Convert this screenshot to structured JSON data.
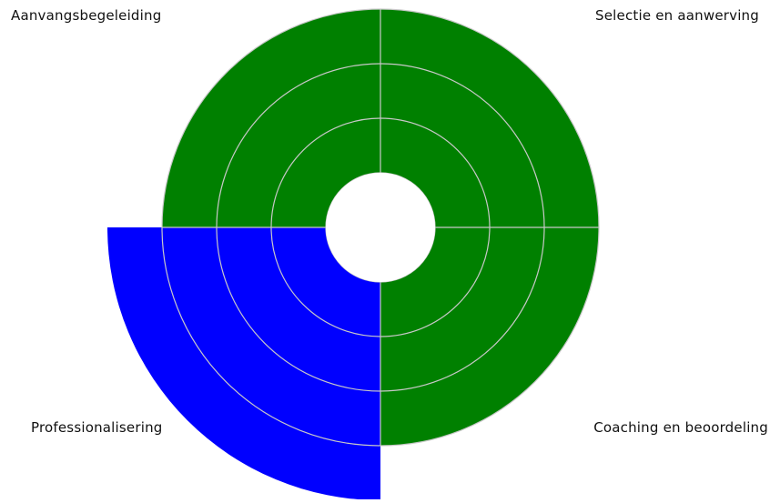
{
  "chart_data": {
    "type": "polar-area",
    "title": "",
    "r_max": 5,
    "rings": [
      1,
      2,
      3,
      4
    ],
    "inner_hole": 1,
    "sectors": [
      {
        "label": "Selectie en aanwerving",
        "value": 4,
        "color": "#008000"
      },
      {
        "label": "Coaching en beoordeling",
        "value": 4,
        "color": "#008000"
      },
      {
        "label": "Professionalisering",
        "value": 5,
        "color": "#0000ff"
      },
      {
        "label": "Aanvangsbegeleiding",
        "value": 4,
        "color": "#008000"
      }
    ],
    "grid": true,
    "grid_color": "#c8c8c8",
    "center_color": "#ffffff"
  }
}
